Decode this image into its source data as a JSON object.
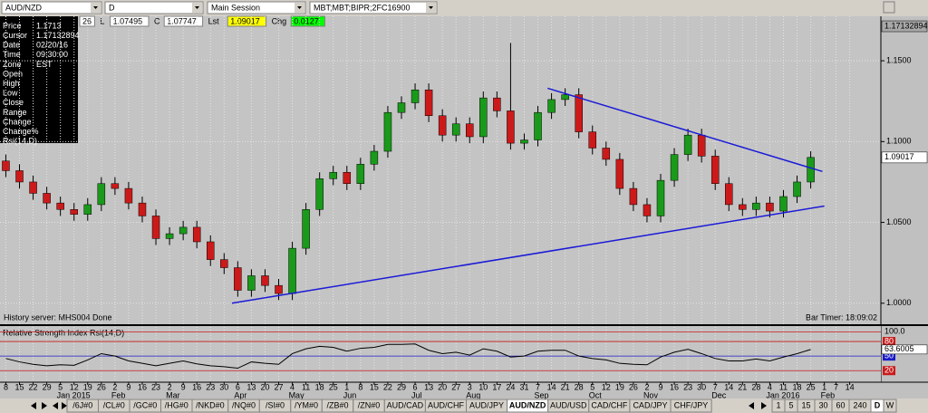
{
  "toolbar": {
    "symbol": "AUD/NZD",
    "interval": "D",
    "session": "Main Session",
    "account": "MBT;MBT;BIPR;2FC16900"
  },
  "quote_bar": [
    {
      "text": "26",
      "bg": "#ffffff"
    },
    {
      "text": "L"
    },
    {
      "text": "1.07495",
      "bg": "#ffffff"
    },
    {
      "text": "C"
    },
    {
      "text": "1.07747",
      "bg": "#ffffff"
    },
    {
      "text": "Lst"
    },
    {
      "text": "1.09017",
      "bg": "#ffff00"
    },
    {
      "text": "Chg"
    },
    {
      "text": "0.0127",
      "bg": "#00ff00"
    }
  ],
  "info_panel": {
    "rows": [
      [
        "Price",
        "1.1713"
      ],
      [
        "Cursor",
        "1.17132894"
      ],
      [
        "Date",
        "02/20/16"
      ],
      [
        "Time",
        "09:30:00"
      ],
      [
        "Zone",
        "EST"
      ],
      [
        "Open"
      ],
      [
        "High"
      ],
      [
        "Low"
      ],
      [
        "Close"
      ],
      [
        "Range"
      ],
      [
        "Change"
      ],
      [
        "Change%"
      ],
      [
        "Rsi(14,D)"
      ]
    ]
  },
  "status": {
    "history": "History server: MHS004 Done",
    "bar_timer": "Bar Timer: 18:09:02"
  },
  "chart_data": [
    {
      "type": "candlestick",
      "x": [
        "2014-12-08",
        "2014-12-15",
        "2014-12-22",
        "2014-12-29",
        "2015-01-05",
        "2015-01-12",
        "2015-01-19",
        "2015-01-26",
        "2015-02-02",
        "2015-02-09",
        "2015-02-16",
        "2015-02-23",
        "2015-03-02",
        "2015-03-09",
        "2015-03-16",
        "2015-03-23",
        "2015-03-30",
        "2015-04-06",
        "2015-04-13",
        "2015-04-20",
        "2015-04-27",
        "2015-05-04",
        "2015-05-11",
        "2015-05-18",
        "2015-05-25",
        "2015-06-01",
        "2015-06-08",
        "2015-06-15",
        "2015-06-22",
        "2015-06-29",
        "2015-07-06",
        "2015-07-13",
        "2015-07-20",
        "2015-07-27",
        "2015-08-03",
        "2015-08-10",
        "2015-08-17",
        "2015-08-24",
        "2015-08-31",
        "2015-09-07",
        "2015-09-14",
        "2015-09-21",
        "2015-09-28",
        "2015-10-05",
        "2015-10-12",
        "2015-10-19",
        "2015-10-26",
        "2015-11-02",
        "2015-11-09",
        "2015-11-16",
        "2015-11-23",
        "2015-11-30",
        "2015-12-07",
        "2015-12-14",
        "2015-12-21",
        "2015-12-28",
        "2016-01-04",
        "2016-01-11",
        "2016-01-18",
        "2016-01-25"
      ],
      "open": [
        1.088,
        1.082,
        1.075,
        1.068,
        1.062,
        1.058,
        1.055,
        1.061,
        1.074,
        1.071,
        1.062,
        1.054,
        1.04,
        1.043,
        1.047,
        1.038,
        1.027,
        1.022,
        1.008,
        1.017,
        1.011,
        1.006,
        1.034,
        1.058,
        1.077,
        1.081,
        1.074,
        1.086,
        1.094,
        1.118,
        1.124,
        1.132,
        1.116,
        1.104,
        1.111,
        1.103,
        1.127,
        1.119,
        1.099,
        1.101,
        1.118,
        1.126,
        1.129,
        1.106,
        1.096,
        1.089,
        1.071,
        1.061,
        1.054,
        1.076,
        1.092,
        1.104,
        1.091,
        1.074,
        1.061,
        1.058,
        1.062,
        1.057,
        1.066,
        1.075
      ],
      "high": [
        1.092,
        1.086,
        1.079,
        1.072,
        1.066,
        1.062,
        1.065,
        1.078,
        1.078,
        1.075,
        1.066,
        1.058,
        1.047,
        1.051,
        1.051,
        1.042,
        1.031,
        1.026,
        1.021,
        1.021,
        1.015,
        1.038,
        1.062,
        1.081,
        1.085,
        1.085,
        1.09,
        1.098,
        1.122,
        1.128,
        1.136,
        1.136,
        1.12,
        1.115,
        1.115,
        1.131,
        1.131,
        1.161,
        1.105,
        1.122,
        1.13,
        1.133,
        1.133,
        1.11,
        1.1,
        1.093,
        1.075,
        1.065,
        1.08,
        1.096,
        1.108,
        1.108,
        1.095,
        1.078,
        1.065,
        1.066,
        1.066,
        1.07,
        1.079,
        1.094
      ],
      "low": [
        1.078,
        1.071,
        1.064,
        1.058,
        1.054,
        1.051,
        1.051,
        1.057,
        1.067,
        1.058,
        1.05,
        1.036,
        1.036,
        1.039,
        1.034,
        1.023,
        1.018,
        1.004,
        1.004,
        1.007,
        1.002,
        1.002,
        1.03,
        1.054,
        1.073,
        1.07,
        1.07,
        1.082,
        1.09,
        1.114,
        1.12,
        1.112,
        1.1,
        1.1,
        1.099,
        1.099,
        1.115,
        1.095,
        1.095,
        1.097,
        1.114,
        1.122,
        1.102,
        1.092,
        1.085,
        1.067,
        1.057,
        1.05,
        1.05,
        1.072,
        1.088,
        1.087,
        1.07,
        1.057,
        1.054,
        1.054,
        1.053,
        1.053,
        1.062,
        1.071
      ],
      "close": [
        1.082,
        1.075,
        1.068,
        1.062,
        1.058,
        1.055,
        1.061,
        1.074,
        1.071,
        1.062,
        1.054,
        1.04,
        1.043,
        1.047,
        1.038,
        1.027,
        1.022,
        1.008,
        1.017,
        1.011,
        1.006,
        1.034,
        1.058,
        1.077,
        1.081,
        1.074,
        1.086,
        1.094,
        1.118,
        1.124,
        1.132,
        1.116,
        1.104,
        1.111,
        1.103,
        1.127,
        1.119,
        1.099,
        1.101,
        1.118,
        1.126,
        1.129,
        1.106,
        1.096,
        1.089,
        1.071,
        1.061,
        1.054,
        1.076,
        1.092,
        1.104,
        1.091,
        1.074,
        1.061,
        1.058,
        1.062,
        1.057,
        1.066,
        1.075,
        1.0902
      ],
      "up_color": "#1a9a1a",
      "down_color": "#cc1a1a",
      "ylim": [
        0.987,
        1.1775
      ],
      "yticks": [
        {
          "value": 1.0,
          "label": "1.0000"
        },
        {
          "value": 1.05,
          "label": "1.0500"
        },
        {
          "value": 1.1,
          "label": "1.1000"
        },
        {
          "value": 1.15,
          "label": "1.1500"
        }
      ],
      "price_labels": [
        {
          "value": 1.17132894,
          "label": "1.17132894",
          "bg": "#a8a8a8"
        },
        {
          "value": 1.09017,
          "label": "1.09017",
          "bg": "#ffffff"
        }
      ],
      "xlim": [
        "2014-12-05",
        "2016-03-01"
      ],
      "xticks": [
        {
          "value": "2014-12-08",
          "label": "8"
        },
        {
          "value": "2014-12-15",
          "label": "15"
        },
        {
          "value": "2014-12-22",
          "label": "22"
        },
        {
          "value": "2014-12-29",
          "label": "29"
        },
        {
          "value": "2015-01-05",
          "label": "5"
        },
        {
          "value": "2015-01-12",
          "label": "12"
        },
        {
          "value": "2015-01-19",
          "label": "19"
        },
        {
          "value": "2015-01-26",
          "label": "26"
        },
        {
          "value": "2015-02-02",
          "label": "2"
        },
        {
          "value": "2015-02-09",
          "label": "9"
        },
        {
          "value": "2015-02-16",
          "label": "16"
        },
        {
          "value": "2015-02-23",
          "label": "23"
        },
        {
          "value": "2015-03-02",
          "label": "2"
        },
        {
          "value": "2015-03-09",
          "label": "9"
        },
        {
          "value": "2015-03-16",
          "label": "16"
        },
        {
          "value": "2015-03-23",
          "label": "23"
        },
        {
          "value": "2015-03-30",
          "label": "30"
        },
        {
          "value": "2015-04-06",
          "label": "6"
        },
        {
          "value": "2015-04-13",
          "label": "13"
        },
        {
          "value": "2015-04-20",
          "label": "20"
        },
        {
          "value": "2015-04-27",
          "label": "27"
        },
        {
          "value": "2015-05-04",
          "label": "4"
        },
        {
          "value": "2015-05-11",
          "label": "11"
        },
        {
          "value": "2015-05-18",
          "label": "18"
        },
        {
          "value": "2015-05-25",
          "label": "25"
        },
        {
          "value": "2015-06-01",
          "label": "1"
        },
        {
          "value": "2015-06-08",
          "label": "8"
        },
        {
          "value": "2015-06-15",
          "label": "15"
        },
        {
          "value": "2015-06-22",
          "label": "22"
        },
        {
          "value": "2015-06-29",
          "label": "29"
        },
        {
          "value": "2015-07-06",
          "label": "6"
        },
        {
          "value": "2015-07-13",
          "label": "13"
        },
        {
          "value": "2015-07-20",
          "label": "20"
        },
        {
          "value": "2015-07-27",
          "label": "27"
        },
        {
          "value": "2015-08-03",
          "label": "3"
        },
        {
          "value": "2015-08-10",
          "label": "10"
        },
        {
          "value": "2015-08-17",
          "label": "17"
        },
        {
          "value": "2015-08-24",
          "label": "24"
        },
        {
          "value": "2015-08-31",
          "label": "31"
        },
        {
          "value": "2015-09-07",
          "label": "7"
        },
        {
          "value": "2015-09-14",
          "label": "14"
        },
        {
          "value": "2015-09-21",
          "label": "21"
        },
        {
          "value": "2015-09-28",
          "label": "28"
        },
        {
          "value": "2015-10-05",
          "label": "5"
        },
        {
          "value": "2015-10-12",
          "label": "12"
        },
        {
          "value": "2015-10-19",
          "label": "19"
        },
        {
          "value": "2015-10-26",
          "label": "26"
        },
        {
          "value": "2015-11-02",
          "label": "2"
        },
        {
          "value": "2015-11-09",
          "label": "9"
        },
        {
          "value": "2015-11-16",
          "label": "16"
        },
        {
          "value": "2015-11-23",
          "label": "23"
        },
        {
          "value": "2015-11-30",
          "label": "30"
        },
        {
          "value": "2015-12-07",
          "label": "7"
        },
        {
          "value": "2015-12-14",
          "label": "14"
        },
        {
          "value": "2015-12-21",
          "label": "21"
        },
        {
          "value": "2015-12-28",
          "label": "28"
        },
        {
          "value": "2016-01-04",
          "label": "4"
        },
        {
          "value": "2016-01-11",
          "label": "11"
        },
        {
          "value": "2016-01-18",
          "label": "18"
        },
        {
          "value": "2016-01-25",
          "label": "25"
        },
        {
          "value": "2016-02-01",
          "label": "1"
        },
        {
          "value": "2016-02-07",
          "label": "7"
        },
        {
          "value": "2016-02-14",
          "label": "14"
        }
      ],
      "months": [
        {
          "value": "2015-01-05",
          "label": "Jan 2015"
        },
        {
          "value": "2015-02-02",
          "label": "Feb"
        },
        {
          "value": "2015-03-02",
          "label": "Mar"
        },
        {
          "value": "2015-04-06",
          "label": "Apr"
        },
        {
          "value": "2015-05-04",
          "label": "May"
        },
        {
          "value": "2015-06-01",
          "label": "Jun"
        },
        {
          "value": "2015-07-06",
          "label": "Jul"
        },
        {
          "value": "2015-08-03",
          "label": "Aug"
        },
        {
          "value": "2015-09-07",
          "label": "Sep"
        },
        {
          "value": "2015-10-05",
          "label": "Oct"
        },
        {
          "value": "2015-11-02",
          "label": "Nov"
        },
        {
          "value": "2015-12-07",
          "label": "Dec"
        },
        {
          "value": "2016-01-04",
          "label": "Jan 2016"
        },
        {
          "value": "2016-02-01",
          "label": "Feb"
        }
      ],
      "trendlines": [
        {
          "x": [
            "2015-09-12",
            "2016-01-31"
          ],
          "y": [
            1.133,
            1.0815
          ],
          "color": "#1a1ad8"
        },
        {
          "x": [
            "2015-04-03",
            "2016-02-01"
          ],
          "y": [
            1.0,
            1.0601
          ],
          "color": "#1a1ad8"
        }
      ],
      "grid": true
    },
    {
      "type": "line",
      "title": "Relative Strength Index Rsi(14,D)",
      "x": [
        "2014-12-08",
        "2014-12-15",
        "2014-12-22",
        "2014-12-29",
        "2015-01-05",
        "2015-01-12",
        "2015-01-19",
        "2015-01-26",
        "2015-02-02",
        "2015-02-09",
        "2015-02-16",
        "2015-02-23",
        "2015-03-02",
        "2015-03-09",
        "2015-03-16",
        "2015-03-23",
        "2015-03-30",
        "2015-04-06",
        "2015-04-13",
        "2015-04-20",
        "2015-04-27",
        "2015-05-04",
        "2015-05-11",
        "2015-05-18",
        "2015-05-25",
        "2015-06-01",
        "2015-06-08",
        "2015-06-15",
        "2015-06-22",
        "2015-06-29",
        "2015-07-06",
        "2015-07-13",
        "2015-07-20",
        "2015-07-27",
        "2015-08-03",
        "2015-08-10",
        "2015-08-17",
        "2015-08-24",
        "2015-08-31",
        "2015-09-07",
        "2015-09-14",
        "2015-09-21",
        "2015-09-28",
        "2015-10-05",
        "2015-10-12",
        "2015-10-19",
        "2015-10-26",
        "2015-11-02",
        "2015-11-09",
        "2015-11-16",
        "2015-11-23",
        "2015-11-30",
        "2015-12-07",
        "2015-12-14",
        "2015-12-21",
        "2015-12-28",
        "2016-01-04",
        "2016-01-11",
        "2016-01-18",
        "2016-01-25"
      ],
      "values": [
        45,
        38,
        33,
        30,
        32,
        31,
        42,
        55,
        50,
        40,
        35,
        30,
        35,
        40,
        34,
        30,
        28,
        25,
        38,
        35,
        33,
        55,
        65,
        70,
        68,
        60,
        66,
        68,
        74,
        74,
        75,
        62,
        55,
        58,
        52,
        65,
        60,
        48,
        50,
        60,
        62,
        62,
        50,
        45,
        42,
        35,
        33,
        32,
        48,
        58,
        64,
        55,
        45,
        40,
        40,
        44,
        40,
        48,
        55,
        63.6005
      ],
      "color": "#000000",
      "ylim": [
        -2,
        110
      ],
      "yticks": [
        {
          "value": 100,
          "label": "100.0"
        },
        80,
        50,
        20
      ],
      "tick_colors": [
        "#c0c0c0",
        "#c81a1a",
        "#1a1ac8",
        "#c81a1a"
      ],
      "last_value": 63.6005,
      "xlim": [
        "2014-12-05",
        "2016-03-01"
      ]
    }
  ],
  "tabs": [
    "/6J#0",
    "/CL#0",
    "/GC#0",
    "/HG#0",
    "/NKD#0",
    "/NQ#0",
    "/SI#0",
    "/YM#0",
    "/ZB#0",
    "/ZN#0",
    "AUD/CAD",
    "AUD/CHF",
    "AUD/JPY",
    "AUD/NZD",
    "AUD/USD",
    "CAD/CHF",
    "CAD/JPY",
    "CHF/JPY"
  ],
  "active_tab": 13,
  "intervals": [
    "1",
    "5",
    "15",
    "30",
    "60",
    "240",
    "D",
    "W"
  ],
  "active_interval": 6
}
